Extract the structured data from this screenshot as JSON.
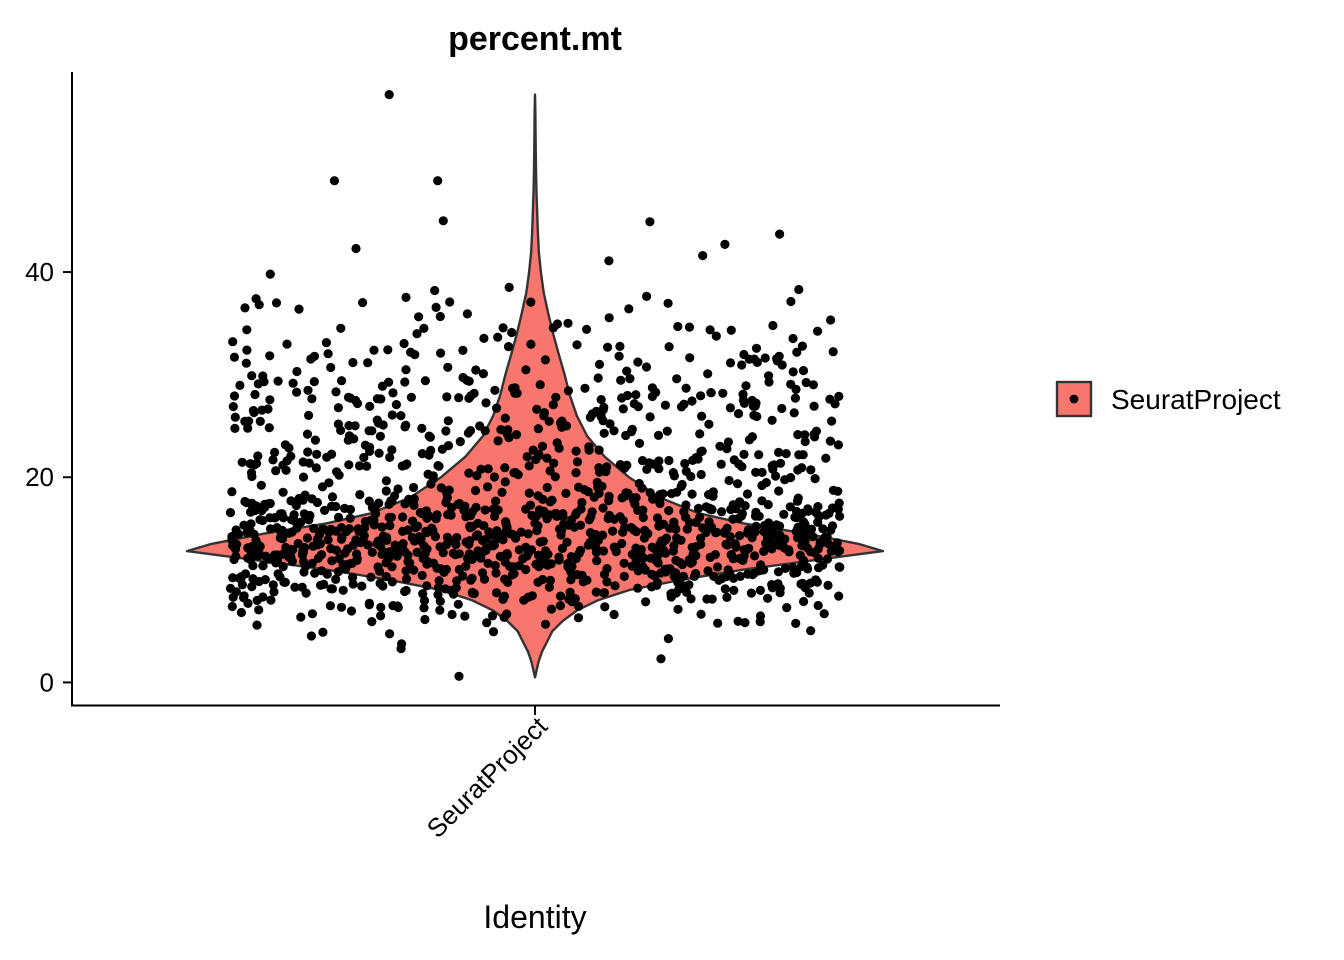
{
  "chart_data": {
    "type": "violin",
    "title": "percent.mt",
    "xlabel": "Identity",
    "ylabel": "",
    "categories": [
      "SeuratProject"
    ],
    "ylim": [
      -2.2,
      59.5
    ],
    "yticks": [
      0,
      20,
      40
    ],
    "grid": false,
    "legend": {
      "placement": "right",
      "entries": [
        "SeuratProject"
      ]
    },
    "fill_color": "#F8766D",
    "outline_color": "#333333",
    "point_color": "#000000",
    "violin_profile": [
      [
        0.5,
        0.0
      ],
      [
        2,
        0.01
      ],
      [
        3,
        0.02
      ],
      [
        4,
        0.035
      ],
      [
        5,
        0.05
      ],
      [
        6,
        0.08
      ],
      [
        7,
        0.12
      ],
      [
        8,
        0.18
      ],
      [
        9,
        0.27
      ],
      [
        10,
        0.42
      ],
      [
        11,
        0.6
      ],
      [
        12,
        0.82
      ],
      [
        12.8,
        1.0
      ],
      [
        13.5,
        0.93
      ],
      [
        14.5,
        0.78
      ],
      [
        15.5,
        0.6
      ],
      [
        16.5,
        0.47
      ],
      [
        18,
        0.36
      ],
      [
        20,
        0.27
      ],
      [
        22,
        0.2
      ],
      [
        24,
        0.15
      ],
      [
        26,
        0.12
      ],
      [
        28,
        0.1
      ],
      [
        30,
        0.085
      ],
      [
        32,
        0.068
      ],
      [
        34,
        0.052
      ],
      [
        36,
        0.038
      ],
      [
        38,
        0.025
      ],
      [
        40,
        0.017
      ],
      [
        42,
        0.011
      ],
      [
        44,
        0.008
      ],
      [
        46,
        0.006
      ],
      [
        48,
        0.004
      ],
      [
        50,
        0.003
      ],
      [
        52,
        0.002
      ],
      [
        54,
        0.0015
      ],
      [
        56,
        0.001
      ],
      [
        57.3,
        0.0
      ]
    ],
    "n_points": 1350,
    "highlighted_points": [
      57.3,
      48.9,
      48.9,
      45.0,
      44.9,
      43.7,
      42.7,
      42.3,
      41.6,
      41.1,
      39.8,
      38.5,
      38.3,
      38.2,
      3.3,
      2.3,
      0.6
    ]
  }
}
